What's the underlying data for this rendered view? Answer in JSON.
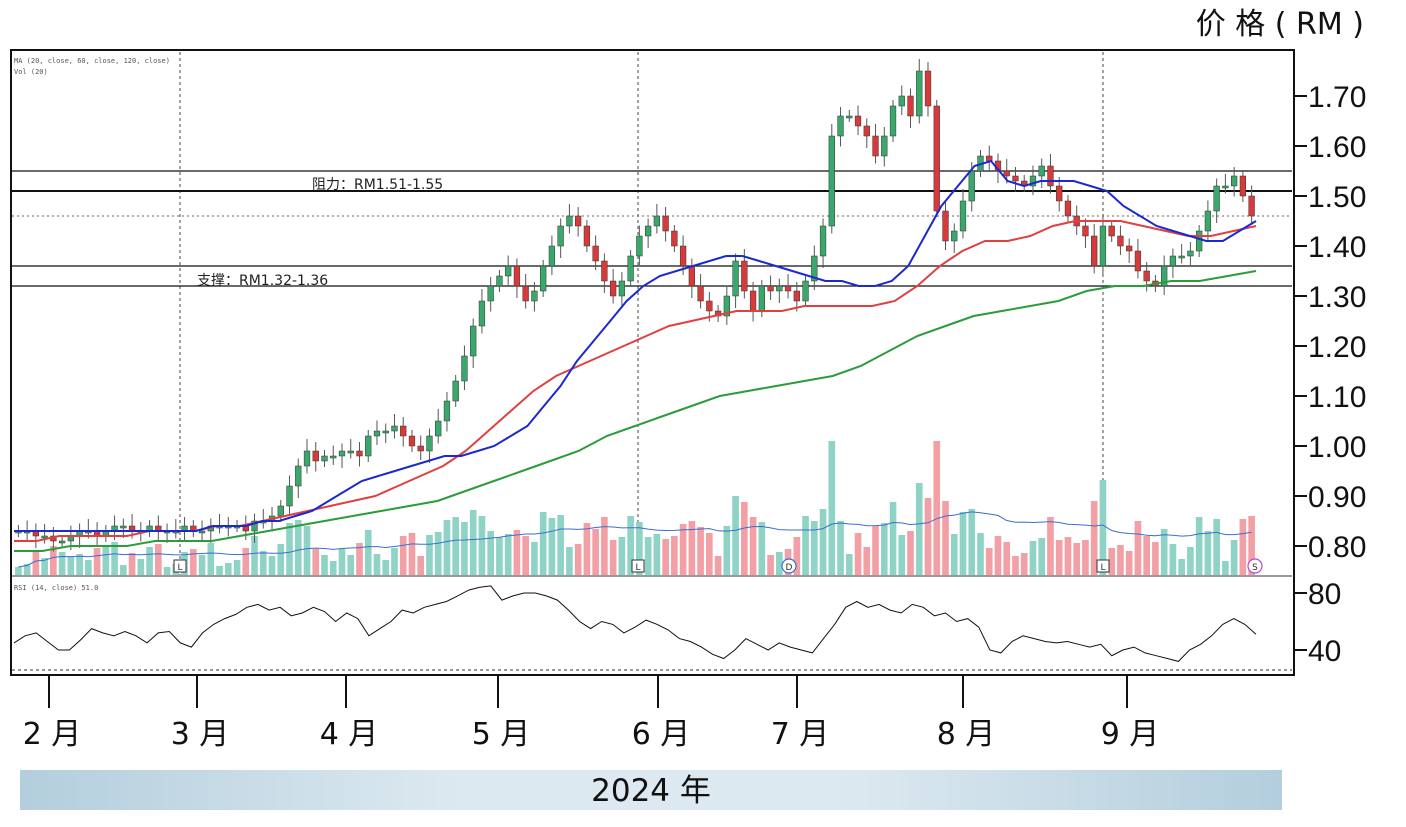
{
  "chart_data": {
    "type": "candlestick",
    "unit_label": "价 格 ( RM )",
    "year_label": "2024 年",
    "price_axis": {
      "ticks": [
        "1.70",
        "1.60",
        "1.50",
        "1.40",
        "1.30",
        "1.20",
        "1.10",
        "1.00",
        "0.90",
        "0.80"
      ],
      "range": [
        0.78,
        1.79
      ]
    },
    "rsi_axis": {
      "ticks": [
        "80",
        "40"
      ],
      "range": [
        25,
        92
      ]
    },
    "months": [
      "2 月",
      "3 月",
      "4 月",
      "5 月",
      "6 月",
      "7 月",
      "8 月",
      "9 月"
    ],
    "resistance": {
      "label": "阻力：RM1.51-1.55",
      "low": 1.51,
      "high": 1.55
    },
    "support": {
      "label": "支撑：RM1.32-1.36",
      "low": 1.32,
      "high": 1.36
    },
    "last_price_ref": 1.46,
    "indicator_legend": {
      "ma": "MA (20, close, 60, close, 120, close)",
      "vol": "Vol (20)",
      "rsi": "RSI (14, close) 51.0"
    },
    "event_markers": [
      "L",
      "L",
      "D",
      "L",
      "S"
    ],
    "closes": [
      0.83,
      0.83,
      0.82,
      0.82,
      0.81,
      0.81,
      0.82,
      0.83,
      0.83,
      0.82,
      0.83,
      0.84,
      0.84,
      0.83,
      0.83,
      0.84,
      0.83,
      0.83,
      0.83,
      0.84,
      0.83,
      0.83,
      0.84,
      0.84,
      0.84,
      0.84,
      0.83,
      0.85,
      0.85,
      0.86,
      0.88,
      0.92,
      0.96,
      0.99,
      0.97,
      0.98,
      0.98,
      0.99,
      0.99,
      0.98,
      1.02,
      1.03,
      1.03,
      1.04,
      1.02,
      1.0,
      0.99,
      1.02,
      1.05,
      1.09,
      1.13,
      1.18,
      1.24,
      1.29,
      1.32,
      1.34,
      1.36,
      1.32,
      1.29,
      1.31,
      1.36,
      1.4,
      1.44,
      1.46,
      1.44,
      1.4,
      1.37,
      1.33,
      1.3,
      1.33,
      1.38,
      1.42,
      1.44,
      1.46,
      1.43,
      1.4,
      1.36,
      1.32,
      1.29,
      1.27,
      1.26,
      1.3,
      1.37,
      1.31,
      1.27,
      1.32,
      1.31,
      1.32,
      1.31,
      1.29,
      1.33,
      1.38,
      1.44,
      1.62,
      1.66,
      1.66,
      1.64,
      1.62,
      1.58,
      1.62,
      1.68,
      1.7,
      1.66,
      1.75,
      1.68,
      1.47,
      1.41,
      1.43,
      1.49,
      1.55,
      1.58,
      1.57,
      1.55,
      1.54,
      1.53,
      1.52,
      1.54,
      1.56,
      1.52,
      1.49,
      1.46,
      1.44,
      1.42,
      1.36,
      1.44,
      1.42,
      1.4,
      1.39,
      1.35,
      1.33,
      1.32,
      1.36,
      1.38,
      1.38,
      1.39,
      1.43,
      1.47,
      1.52,
      1.52,
      1.54,
      1.5,
      1.46
    ],
    "ma20": [
      0.83,
      0.83,
      0.83,
      0.83,
      0.83,
      0.83,
      0.83,
      0.83,
      0.83,
      0.83,
      0.83,
      0.83,
      0.84,
      0.84,
      0.84,
      0.85,
      0.85,
      0.86,
      0.87,
      0.89,
      0.91,
      0.93,
      0.94,
      0.95,
      0.96,
      0.97,
      0.98,
      0.98,
      0.99,
      1.0,
      1.02,
      1.04,
      1.08,
      1.12,
      1.17,
      1.21,
      1.25,
      1.29,
      1.32,
      1.34,
      1.35,
      1.36,
      1.37,
      1.38,
      1.38,
      1.37,
      1.36,
      1.35,
      1.34,
      1.33,
      1.33,
      1.32,
      1.32,
      1.33,
      1.36,
      1.42,
      1.48,
      1.52,
      1.56,
      1.57,
      1.53,
      1.52,
      1.53,
      1.53,
      1.53,
      1.52,
      1.51,
      1.48,
      1.46,
      1.44,
      1.43,
      1.42,
      1.41,
      1.41,
      1.43,
      1.45
    ],
    "ma60": [
      0.81,
      0.81,
      0.82,
      0.82,
      0.82,
      0.82,
      0.83,
      0.83,
      0.83,
      0.84,
      0.84,
      0.85,
      0.86,
      0.87,
      0.88,
      0.89,
      0.9,
      0.92,
      0.94,
      0.96,
      0.99,
      1.03,
      1.07,
      1.11,
      1.14,
      1.16,
      1.18,
      1.2,
      1.22,
      1.24,
      1.25,
      1.26,
      1.27,
      1.27,
      1.27,
      1.28,
      1.28,
      1.28,
      1.28,
      1.29,
      1.32,
      1.36,
      1.39,
      1.41,
      1.41,
      1.42,
      1.44,
      1.45,
      1.45,
      1.45,
      1.44,
      1.43,
      1.42,
      1.42,
      1.43,
      1.44
    ],
    "ma120": [
      0.79,
      0.79,
      0.8,
      0.8,
      0.8,
      0.81,
      0.81,
      0.81,
      0.82,
      0.83,
      0.84,
      0.85,
      0.86,
      0.87,
      0.88,
      0.89,
      0.91,
      0.93,
      0.95,
      0.97,
      0.99,
      1.02,
      1.04,
      1.06,
      1.08,
      1.1,
      1.11,
      1.12,
      1.13,
      1.14,
      1.16,
      1.19,
      1.22,
      1.24,
      1.26,
      1.27,
      1.28,
      1.29,
      1.31,
      1.32,
      1.32,
      1.33,
      1.33,
      1.34,
      1.35
    ],
    "rsi": [
      45,
      50,
      52,
      46,
      40,
      40,
      47,
      55,
      52,
      50,
      53,
      50,
      45,
      52,
      53,
      45,
      42,
      52,
      58,
      62,
      65,
      70,
      72,
      68,
      70,
      64,
      66,
      70,
      67,
      60,
      66,
      62,
      50,
      55,
      60,
      68,
      66,
      70,
      72,
      74,
      78,
      82,
      84,
      85,
      75,
      78,
      80,
      80,
      78,
      75,
      68,
      60,
      55,
      60,
      58,
      52,
      56,
      61,
      58,
      54,
      48,
      46,
      42,
      37,
      34,
      40,
      48,
      44,
      40,
      45,
      42,
      40,
      38,
      48,
      58,
      70,
      74,
      70,
      72,
      68,
      66,
      72,
      70,
      64,
      66,
      60,
      62,
      56,
      40,
      38,
      46,
      50,
      48,
      46,
      45,
      46,
      44,
      42,
      44,
      36,
      40,
      42,
      38,
      36,
      34,
      32,
      40,
      44,
      50,
      58,
      62,
      58,
      51
    ]
  }
}
